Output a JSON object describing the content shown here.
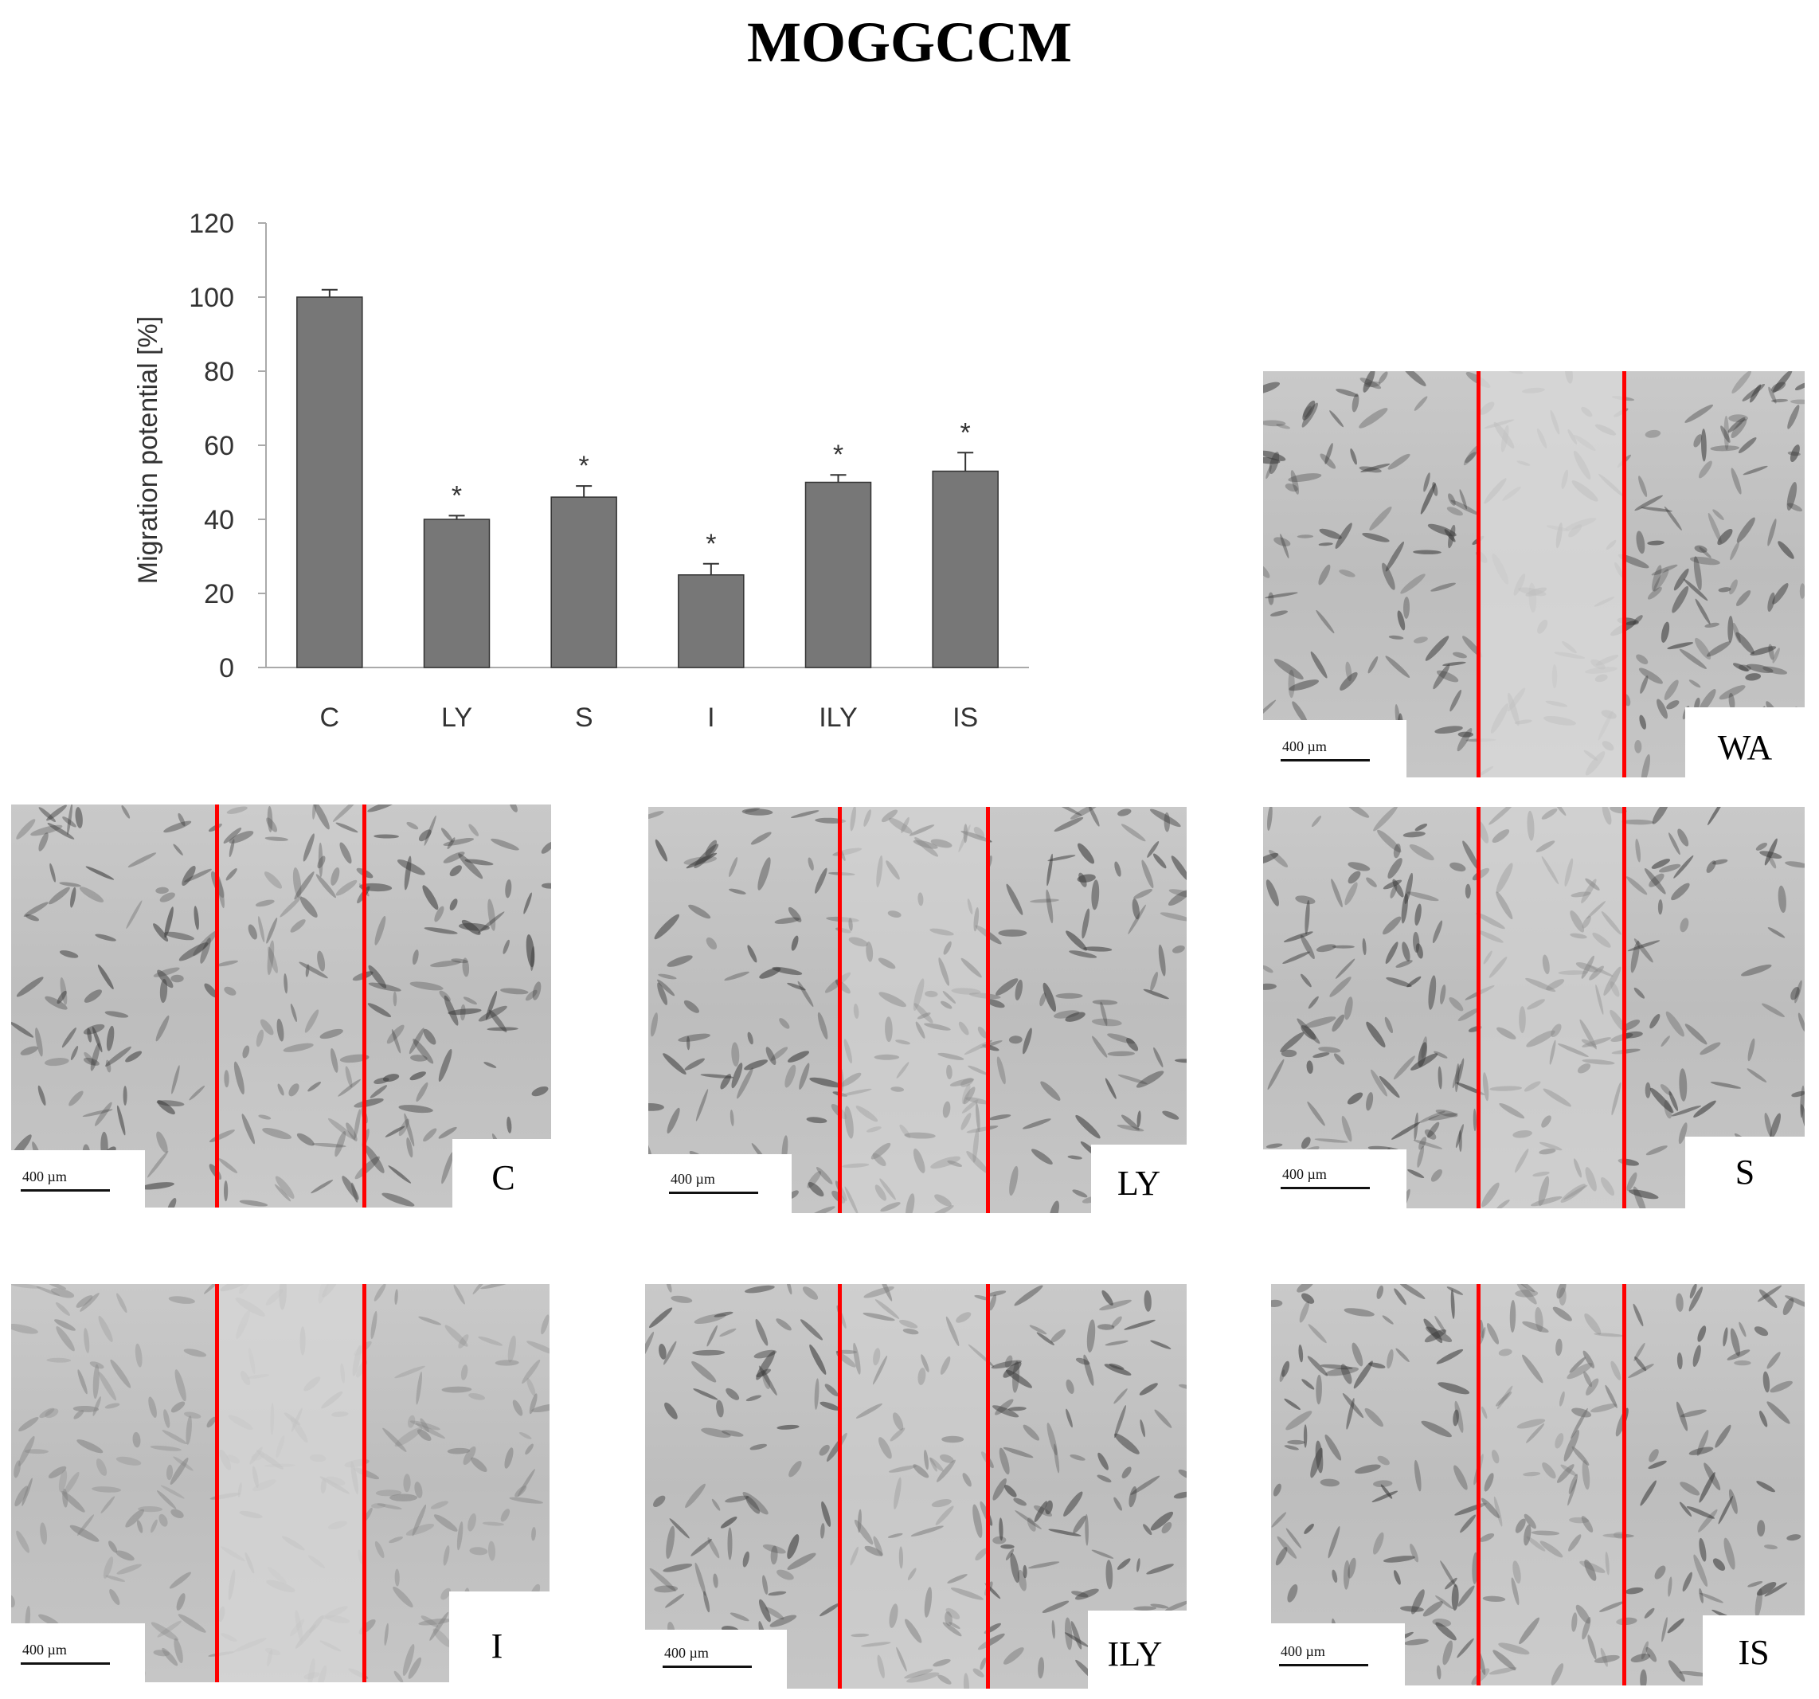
{
  "figure_title": "MOGGCCM",
  "chart_data": {
    "type": "bar",
    "categories": [
      "C",
      "LY",
      "S",
      "I",
      "ILY",
      "IS"
    ],
    "values": [
      100,
      40,
      46,
      25,
      50,
      53
    ],
    "errors": [
      2,
      1,
      3,
      3,
      2,
      5
    ],
    "significance": [
      "",
      "*",
      "*",
      "*",
      "*",
      "*"
    ],
    "title": "",
    "xlabel": "",
    "ylabel": "Migration potential [%]",
    "ylim": [
      0,
      120
    ],
    "yticks": [
      0,
      20,
      40,
      60,
      80,
      100,
      120
    ],
    "grid": false,
    "legend": "none",
    "bar_color": "#777777"
  },
  "panels": [
    {
      "label": "WA",
      "scale": "400 µm"
    },
    {
      "label": "C",
      "scale": "400 µm"
    },
    {
      "label": "LY",
      "scale": "400 µm"
    },
    {
      "label": "S",
      "scale": "400 µm"
    },
    {
      "label": "I",
      "scale": "400 µm"
    },
    {
      "label": "ILY",
      "scale": "400 µm"
    },
    {
      "label": "IS",
      "scale": "400 µm"
    }
  ]
}
